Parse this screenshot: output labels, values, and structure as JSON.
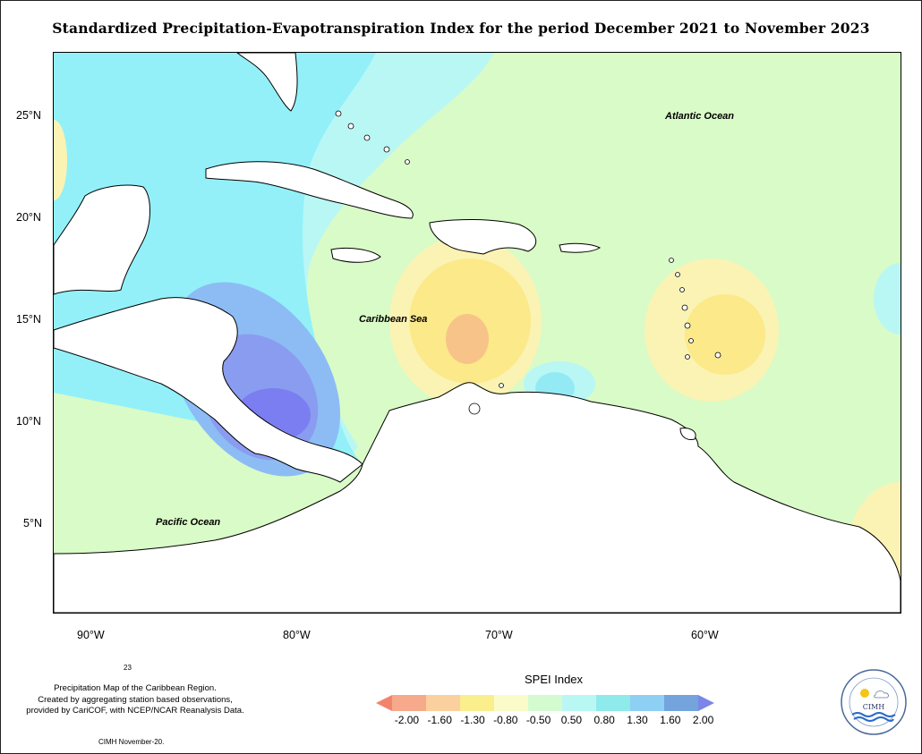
{
  "title": "Standardized Precipitation-Evapotranspiration Index for the period December 2021 to November 2023",
  "lat_ticks": [
    "25°N",
    "20°N",
    "15°N",
    "10°N",
    "5°N"
  ],
  "lon_ticks": [
    "90°W",
    "80°W",
    "70°W",
    "60°W"
  ],
  "labels": {
    "atlantic": "Atlantic Ocean",
    "caribbean": "Caribbean Sea",
    "pacific": "Pacific Ocean"
  },
  "page_number": "23",
  "notes": {
    "line1": "Precipitation Map of the Caribbean Region.",
    "line2": "Created by aggregating station based observations,",
    "line3": "provided by CariCOF, with NCEP/NCAR Reanalysis Data.",
    "credit": "CIMH November-20."
  },
  "legend": {
    "title": "SPEI Index",
    "ticks": [
      "-2.00",
      "-1.60",
      "-1.30",
      "-0.80",
      "-0.50",
      "0.50",
      "0.80",
      "1.30",
      "1.60",
      "2.00"
    ],
    "colors": [
      "#f2846c",
      "#f7a98b",
      "#fbd09f",
      "#fbee8c",
      "#fbfbc9",
      "#d4fbd0",
      "#b9f7f5",
      "#8eeaeb",
      "#8dd0f3",
      "#74a4db",
      "#7a87e8"
    ]
  },
  "logo": {
    "acronym": "CIMH"
  }
}
